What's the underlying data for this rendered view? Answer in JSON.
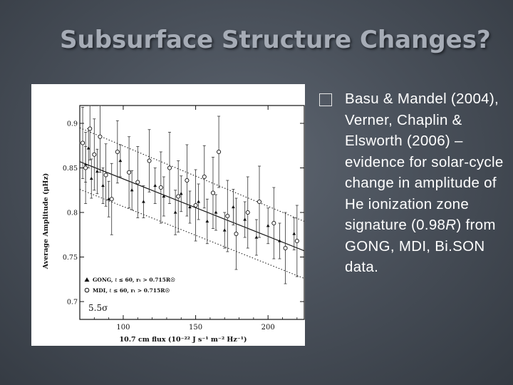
{
  "slide": {
    "title": "Subsurface Structure Changes?",
    "bullets": [
      {
        "pre": "Basu & Mandel (2004), Verner, Chaplin & Elsworth (2006) – evidence for solar-cycle change in amplitude of He ionization zone signature (0.98",
        "italic": "R",
        "post": ") from GONG, MDI, Bi.SON data."
      }
    ]
  },
  "chart_data": {
    "type": "scatter",
    "xlabel": "10.7 cm flux (10⁻²² J s⁻¹ m⁻² Hz⁻¹)",
    "ylabel": "Average Amplitude (μHz)",
    "xlim": [
      70,
      225
    ],
    "ylim": [
      0.68,
      0.92
    ],
    "xticks": [
      100,
      150,
      200
    ],
    "yticks": [
      0.7,
      0.75,
      0.8,
      0.85,
      0.9
    ],
    "xtick_labels": [
      "100",
      "150",
      "200"
    ],
    "ytick_labels": [
      "0.7",
      "0.75",
      "0.8",
      "0.85",
      "0.9"
    ],
    "legend": {
      "placement": "bottom-left",
      "entries": [
        "GONG, ℓ ≤ 60, rₜ > 0.715R☉",
        "MDI, ℓ ≤ 60, rₜ > 0.715R☉"
      ]
    },
    "annotation": "5.5σ",
    "series": [
      {
        "name": "GONG",
        "marker": "triangle",
        "points": [
          [
            74,
            0.854,
            0.02
          ],
          [
            76,
            0.872,
            0.022
          ],
          [
            78,
            0.838,
            0.022
          ],
          [
            82,
            0.846,
            0.025
          ],
          [
            86,
            0.83,
            0.02
          ],
          [
            90,
            0.815,
            0.02
          ],
          [
            98,
            0.858,
            0.018
          ],
          [
            106,
            0.825,
            0.022
          ],
          [
            114,
            0.812,
            0.018
          ],
          [
            122,
            0.83,
            0.02
          ],
          [
            128,
            0.818,
            0.022
          ],
          [
            136,
            0.8,
            0.025
          ],
          [
            140,
            0.821,
            0.02
          ],
          [
            146,
            0.806,
            0.018
          ],
          [
            152,
            0.812,
            0.02
          ],
          [
            158,
            0.79,
            0.025
          ],
          [
            164,
            0.8,
            0.02
          ],
          [
            170,
            0.78,
            0.02
          ],
          [
            176,
            0.806,
            0.02
          ],
          [
            184,
            0.792,
            0.02
          ],
          [
            192,
            0.772,
            0.02
          ],
          [
            200,
            0.785,
            0.02
          ],
          [
            208,
            0.768,
            0.02
          ],
          [
            218,
            0.776,
            0.018
          ]
        ]
      },
      {
        "name": "MDI",
        "marker": "circle",
        "points": [
          [
            72,
            0.878,
            0.04
          ],
          [
            74,
            0.85,
            0.04
          ],
          [
            77,
            0.894,
            0.035
          ],
          [
            80,
            0.865,
            0.04
          ],
          [
            84,
            0.885,
            0.04
          ],
          [
            88,
            0.842,
            0.035
          ],
          [
            92,
            0.815,
            0.04
          ],
          [
            96,
            0.868,
            0.035
          ],
          [
            104,
            0.845,
            0.04
          ],
          [
            110,
            0.834,
            0.04
          ],
          [
            118,
            0.858,
            0.035
          ],
          [
            126,
            0.828,
            0.04
          ],
          [
            132,
            0.85,
            0.04
          ],
          [
            138,
            0.818,
            0.04
          ],
          [
            144,
            0.836,
            0.04
          ],
          [
            150,
            0.808,
            0.04
          ],
          [
            156,
            0.84,
            0.035
          ],
          [
            162,
            0.822,
            0.04
          ],
          [
            166,
            0.868,
            0.04
          ],
          [
            172,
            0.796,
            0.04
          ],
          [
            178,
            0.776,
            0.04
          ],
          [
            186,
            0.8,
            0.04
          ],
          [
            194,
            0.812,
            0.04
          ],
          [
            204,
            0.788,
            0.04
          ],
          [
            212,
            0.76,
            0.04
          ],
          [
            220,
            0.768,
            0.04
          ]
        ]
      }
    ],
    "fits": [
      {
        "name": "fit",
        "style": "solid",
        "x": [
          70,
          225
        ],
        "y": [
          0.857,
          0.757
        ]
      },
      {
        "name": "upper-bound",
        "style": "dotted",
        "x": [
          70,
          225
        ],
        "y": [
          0.895,
          0.79
        ]
      },
      {
        "name": "lower-bound",
        "style": "dotted",
        "x": [
          70,
          225
        ],
        "y": [
          0.826,
          0.726
        ]
      }
    ]
  }
}
